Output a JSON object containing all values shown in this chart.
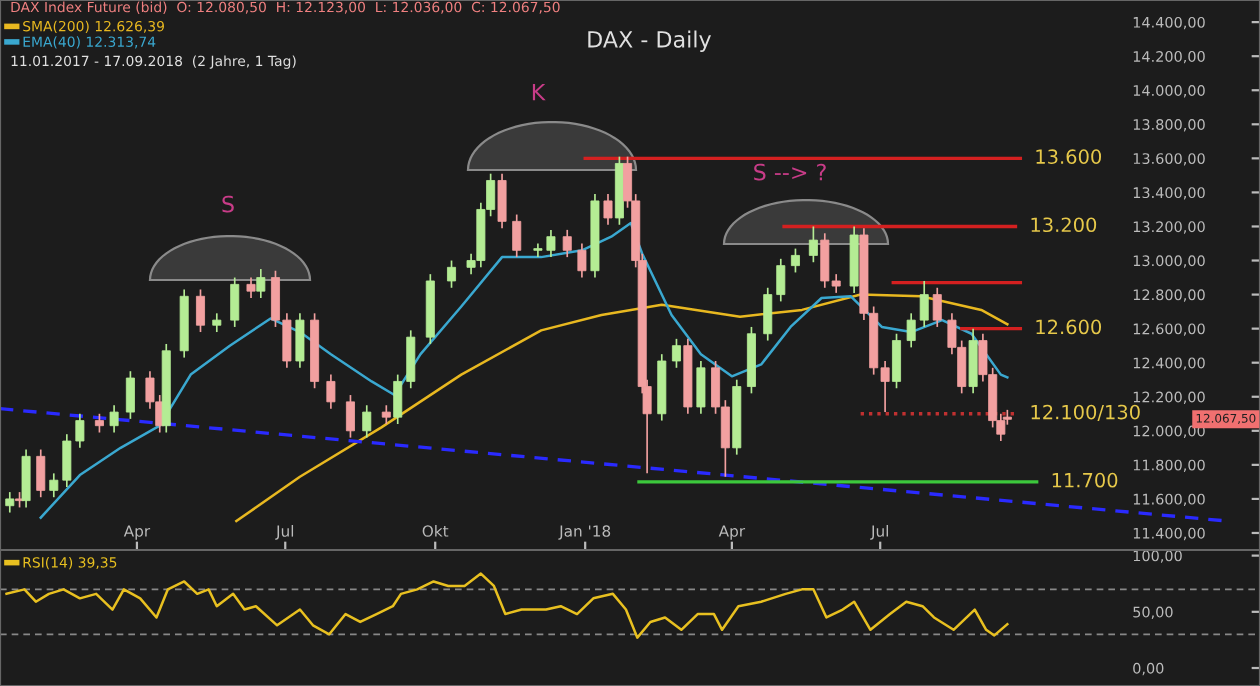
{
  "chart_data": [
    {
      "type": "candlestick",
      "title": "DAX - Daily",
      "xlim": [
        "2017-01-07",
        "2019-02-19"
      ],
      "ylim": [
        11300,
        14530
      ],
      "xticks": [
        {
          "value": "2017-04-01",
          "label": "Apr"
        },
        {
          "value": "2017-07-01",
          "label": "Jul"
        },
        {
          "value": "2017-10-01",
          "label": "Okt"
        },
        {
          "value": "2018-01-01",
          "label": "Jan '18"
        },
        {
          "value": "2018-04-01",
          "label": "Apr"
        },
        {
          "value": "2018-07-01",
          "label": "Jul"
        }
      ],
      "yticks": [
        {
          "value": 11400,
          "label": "11.400,00"
        },
        {
          "value": 11600,
          "label": "11.600,00"
        },
        {
          "value": 11800,
          "label": "11.800,00"
        },
        {
          "value": 12000,
          "label": "12.000,00"
        },
        {
          "value": 12200,
          "label": "12.200,00"
        },
        {
          "value": 12400,
          "label": "12.400,00"
        },
        {
          "value": 12600,
          "label": "12.600,00"
        },
        {
          "value": 12800,
          "label": "12.800,00"
        },
        {
          "value": 13000,
          "label": "13.000,00"
        },
        {
          "value": 13200,
          "label": "13.200,00"
        },
        {
          "value": 13400,
          "label": "13.400,00"
        },
        {
          "value": 13600,
          "label": "13.600,00"
        },
        {
          "value": 13800,
          "label": "13.800,00"
        },
        {
          "value": 14000,
          "label": "14.000,00"
        },
        {
          "value": 14200,
          "label": "14.200,00"
        },
        {
          "value": 14400,
          "label": "14.400,00"
        }
      ],
      "legend": "top left",
      "x": [
        "2017-01-13",
        "2017-01-19",
        "2017-01-23",
        "2017-02-01",
        "2017-02-09",
        "2017-02-17",
        "2017-02-25",
        "2017-03-09",
        "2017-03-18",
        "2017-03-28",
        "2017-04-09",
        "2017-04-15",
        "2017-04-19",
        "2017-04-30",
        "2017-05-10",
        "2017-05-20",
        "2017-05-31",
        "2017-06-10",
        "2017-06-16",
        "2017-06-25",
        "2017-07-02",
        "2017-07-10",
        "2017-07-19",
        "2017-07-29",
        "2017-08-10",
        "2017-08-20",
        "2017-09-01",
        "2017-09-08",
        "2017-09-16",
        "2017-09-28",
        "2017-10-11",
        "2017-10-23",
        "2017-10-29",
        "2017-11-04",
        "2017-11-11",
        "2017-11-20",
        "2017-12-03",
        "2017-12-11",
        "2017-12-21",
        "2017-12-30",
        "2018-01-07",
        "2018-01-15",
        "2018-01-22",
        "2018-01-27",
        "2018-02-01",
        "2018-02-05",
        "2018-02-08",
        "2018-02-17",
        "2018-02-26",
        "2018-03-05",
        "2018-03-13",
        "2018-03-22",
        "2018-03-28",
        "2018-04-04",
        "2018-04-13",
        "2018-04-23",
        "2018-05-01",
        "2018-05-10",
        "2018-05-21",
        "2018-05-28",
        "2018-06-04",
        "2018-06-15",
        "2018-06-21",
        "2018-06-27",
        "2018-07-04",
        "2018-07-11",
        "2018-07-20",
        "2018-07-28",
        "2018-08-05",
        "2018-08-14",
        "2018-08-20",
        "2018-08-27",
        "2018-09-02",
        "2018-09-08",
        "2018-09-13",
        "2018-09-17"
      ],
      "ohlc": [
        [
          11560,
          11640,
          11520,
          11600
        ],
        [
          11600,
          11640,
          11550,
          11590
        ],
        [
          11590,
          11890,
          11550,
          11850
        ],
        [
          11850,
          11890,
          11610,
          11650
        ],
        [
          11650,
          11750,
          11610,
          11710
        ],
        [
          11710,
          11980,
          11670,
          11940
        ],
        [
          11940,
          12100,
          11900,
          12060
        ],
        [
          12060,
          12100,
          11990,
          12030
        ],
        [
          12030,
          12150,
          11990,
          12110
        ],
        [
          12110,
          12350,
          12070,
          12310
        ],
        [
          12310,
          12350,
          12130,
          12170
        ],
        [
          12170,
          12210,
          11990,
          12030
        ],
        [
          12030,
          12510,
          11990,
          12470
        ],
        [
          12470,
          12830,
          12430,
          12790
        ],
        [
          12790,
          12830,
          12580,
          12620
        ],
        [
          12620,
          12690,
          12580,
          12650
        ],
        [
          12650,
          12900,
          12610,
          12860
        ],
        [
          12860,
          12900,
          12780,
          12820
        ],
        [
          12820,
          12950,
          12780,
          12900
        ],
        [
          12900,
          12940,
          12610,
          12650
        ],
        [
          12650,
          12690,
          12370,
          12410
        ],
        [
          12410,
          12690,
          12370,
          12650
        ],
        [
          12650,
          12690,
          12250,
          12290
        ],
        [
          12290,
          12330,
          12130,
          12170
        ],
        [
          12170,
          12210,
          11960,
          12000
        ],
        [
          12000,
          12150,
          11960,
          12110
        ],
        [
          12110,
          12150,
          12040,
          12080
        ],
        [
          12080,
          12330,
          12040,
          12290
        ],
        [
          12290,
          12590,
          12250,
          12550
        ],
        [
          12550,
          12920,
          12510,
          12880
        ],
        [
          12880,
          13000,
          12840,
          12960
        ],
        [
          12960,
          13040,
          12920,
          13000
        ],
        [
          13000,
          13340,
          12960,
          13300
        ],
        [
          13300,
          13510,
          13260,
          13470
        ],
        [
          13470,
          13510,
          13190,
          13230
        ],
        [
          13230,
          13270,
          13020,
          13060
        ],
        [
          13060,
          13100,
          13020,
          13070
        ],
        [
          13060,
          13180,
          13020,
          13140
        ],
        [
          13140,
          13180,
          13020,
          13060
        ],
        [
          13060,
          13100,
          12900,
          12940
        ],
        [
          12940,
          13390,
          12900,
          13350
        ],
        [
          13350,
          13390,
          13210,
          13250
        ],
        [
          13250,
          13610,
          13210,
          13570
        ],
        [
          13570,
          13610,
          13310,
          13350
        ],
        [
          13350,
          13390,
          12960,
          13000
        ],
        [
          13000,
          13040,
          12220,
          12260
        ],
        [
          12260,
          12300,
          11750,
          12100
        ],
        [
          12100,
          12450,
          12060,
          12410
        ],
        [
          12410,
          12540,
          12370,
          12500
        ],
        [
          12500,
          12540,
          12100,
          12140
        ],
        [
          12140,
          12410,
          12100,
          12370
        ],
        [
          12370,
          12410,
          12100,
          12140
        ],
        [
          12140,
          12180,
          11730,
          11900
        ],
        [
          11900,
          12300,
          11860,
          12260
        ],
        [
          12260,
          12610,
          12220,
          12570
        ],
        [
          12570,
          12840,
          12530,
          12800
        ],
        [
          12800,
          13010,
          12760,
          12970
        ],
        [
          12970,
          13070,
          12930,
          13030
        ],
        [
          13030,
          13200,
          12990,
          13120
        ],
        [
          13120,
          13160,
          12840,
          12880
        ],
        [
          12880,
          12920,
          12810,
          12850
        ],
        [
          12850,
          13200,
          12810,
          13150
        ],
        [
          13150,
          13190,
          12650,
          12690
        ],
        [
          12690,
          12730,
          12330,
          12370
        ],
        [
          12370,
          12410,
          12110,
          12290
        ],
        [
          12290,
          12570,
          12250,
          12530
        ],
        [
          12530,
          12690,
          12490,
          12650
        ],
        [
          12650,
          12880,
          12610,
          12800
        ],
        [
          12800,
          12840,
          12610,
          12650
        ],
        [
          12650,
          12690,
          12450,
          12490
        ],
        [
          12490,
          12530,
          12220,
          12260
        ],
        [
          12260,
          12600,
          12220,
          12530
        ],
        [
          12530,
          12570,
          12290,
          12330
        ],
        [
          12330,
          12370,
          12020,
          12060
        ],
        [
          12060,
          12100,
          11940,
          11980
        ],
        [
          12080.5,
          12123,
          12036,
          12067.5
        ]
      ],
      "series": [
        {
          "type": "line",
          "name": "SMA(200) 12.626,39",
          "color": "#e8b820",
          "x": [
            "2017-06-01",
            "2017-07-10",
            "2017-08-29",
            "2017-10-17",
            "2017-12-05",
            "2018-01-11",
            "2018-02-17",
            "2018-04-06",
            "2018-05-14",
            "2018-06-19",
            "2018-07-26",
            "2018-09-01",
            "2018-09-17"
          ],
          "values": [
            11470,
            11730,
            12020,
            12330,
            12590,
            12680,
            12740,
            12670,
            12710,
            12800,
            12790,
            12710,
            12626
          ]
        },
        {
          "type": "line",
          "name": "EMA(40) 12.313,74",
          "color": "#3aa8d0",
          "x": [
            "2017-02-01",
            "2017-02-25",
            "2017-03-22",
            "2017-04-15",
            "2017-05-04",
            "2017-05-28",
            "2017-06-22",
            "2017-07-10",
            "2017-07-29",
            "2017-08-23",
            "2017-09-06",
            "2017-09-22",
            "2017-10-17",
            "2017-11-11",
            "2017-12-05",
            "2017-12-30",
            "2018-01-17",
            "2018-01-29",
            "2018-02-05",
            "2018-02-23",
            "2018-03-13",
            "2018-04-01",
            "2018-04-19",
            "2018-05-07",
            "2018-05-26",
            "2018-06-13",
            "2018-07-02",
            "2018-07-20",
            "2018-08-08",
            "2018-08-26",
            "2018-09-13",
            "2018-09-17"
          ],
          "values": [
            11490,
            11740,
            11900,
            12030,
            12330,
            12500,
            12660,
            12580,
            12450,
            12290,
            12210,
            12450,
            12730,
            13020,
            13020,
            13060,
            13140,
            13220,
            13040,
            12680,
            12450,
            12320,
            12390,
            12610,
            12780,
            12790,
            12610,
            12580,
            12650,
            12570,
            12330,
            12314
          ]
        },
        {
          "type": "line",
          "color": "#2a2aff",
          "line_style": "dashed",
          "x": [
            "2017-01-07",
            "2019-01-30"
          ],
          "values": [
            12130,
            11470
          ]
        },
        {
          "type": "line",
          "name": "13.600",
          "color": "#d42020",
          "x": [
            "2018-01-01",
            "2018-09-25"
          ],
          "values": [
            13600,
            13600
          ]
        },
        {
          "type": "line",
          "name": "13.200",
          "color": "#d42020",
          "x": [
            "2018-05-03",
            "2018-09-22"
          ],
          "values": [
            13200,
            13200
          ]
        },
        {
          "type": "line",
          "color": "#d42020",
          "x": [
            "2018-07-09",
            "2018-09-25"
          ],
          "values": [
            12870,
            12870
          ]
        },
        {
          "type": "line",
          "name": "12.600",
          "color": "#d42020",
          "x": [
            "2018-08-20",
            "2018-09-25"
          ],
          "values": [
            12600,
            12600
          ]
        },
        {
          "type": "line",
          "name": "12.100/130",
          "color": "#c03030",
          "line_style": "dotted",
          "x": [
            "2018-06-19",
            "2018-09-22"
          ],
          "values": [
            12100,
            12100
          ]
        },
        {
          "type": "line",
          "name": "11.700",
          "color": "#3cc83c",
          "x": [
            "2018-02-03",
            "2018-10-05"
          ],
          "values": [
            11700,
            11700
          ]
        }
      ],
      "annotations": [
        "DAX Index Future (bid)  O: 12.080,50  H: 12.123,00  L: 12.036,00  C: 12.067,50",
        "11.01.2017 - 17.09.2018  (2 Jahre, 1 Tag)",
        "S",
        "K",
        "S --> ?",
        "12.067,50"
      ]
    },
    {
      "type": "line",
      "xlim": [
        "2017-01-07",
        "2019-02-19"
      ],
      "ylim": [
        -16,
        105
      ],
      "yticks": [
        {
          "value": 0,
          "label": "0,00"
        },
        {
          "value": 50,
          "label": "50,00"
        },
        {
          "value": 100,
          "label": "100,00"
        }
      ],
      "tick_labels": "y",
      "legend": "top left",
      "ref_lines": [
        {
          "axis": "y",
          "value": 70,
          "color": "#888888",
          "line_style": "dashed"
        },
        {
          "axis": "y",
          "value": 30,
          "color": "#888888",
          "line_style": "dashed"
        }
      ],
      "series": [
        {
          "name": "RSI(14) 39,35",
          "color": "#e8c020",
          "x": [
            "2017-01-11",
            "2017-01-22",
            "2017-01-29",
            "2017-02-06",
            "2017-02-15",
            "2017-02-25",
            "2017-03-07",
            "2017-03-17",
            "2017-03-24",
            "2017-04-03",
            "2017-04-13",
            "2017-04-20",
            "2017-04-30",
            "2017-05-08",
            "2017-05-15",
            "2017-05-20",
            "2017-05-30",
            "2017-06-06",
            "2017-06-13",
            "2017-06-26",
            "2017-07-10",
            "2017-07-18",
            "2017-07-28",
            "2017-08-07",
            "2017-08-16",
            "2017-08-26",
            "2017-09-05",
            "2017-09-10",
            "2017-09-20",
            "2017-09-30",
            "2017-10-09",
            "2017-10-19",
            "2017-10-29",
            "2017-11-06",
            "2017-11-13",
            "2017-11-23",
            "2017-12-08",
            "2017-12-17",
            "2017-12-27",
            "2018-01-06",
            "2018-01-18",
            "2018-01-26",
            "2018-02-02",
            "2018-02-10",
            "2018-02-19",
            "2018-03-01",
            "2018-03-11",
            "2018-03-21",
            "2018-03-26",
            "2018-04-05",
            "2018-04-19",
            "2018-05-04",
            "2018-05-14",
            "2018-05-21",
            "2018-05-29",
            "2018-06-08",
            "2018-06-15",
            "2018-06-25",
            "2018-07-07",
            "2018-07-17",
            "2018-07-27",
            "2018-08-03",
            "2018-08-15",
            "2018-08-28",
            "2018-09-04",
            "2018-09-09",
            "2018-09-17"
          ],
          "values": [
            66,
            70,
            59,
            66,
            70,
            62,
            66,
            52,
            70,
            62,
            45,
            70,
            77,
            66,
            70,
            55,
            66,
            52,
            55,
            38,
            52,
            38,
            30,
            48,
            41,
            48,
            55,
            66,
            70,
            77,
            73,
            73,
            84,
            73,
            48,
            52,
            52,
            55,
            48,
            62,
            66,
            52,
            27,
            41,
            45,
            34,
            48,
            48,
            34,
            55,
            59,
            66,
            70,
            70,
            45,
            52,
            59,
            34,
            48,
            59,
            55,
            45,
            34,
            52,
            34,
            29,
            39
          ]
        }
      ]
    }
  ]
}
